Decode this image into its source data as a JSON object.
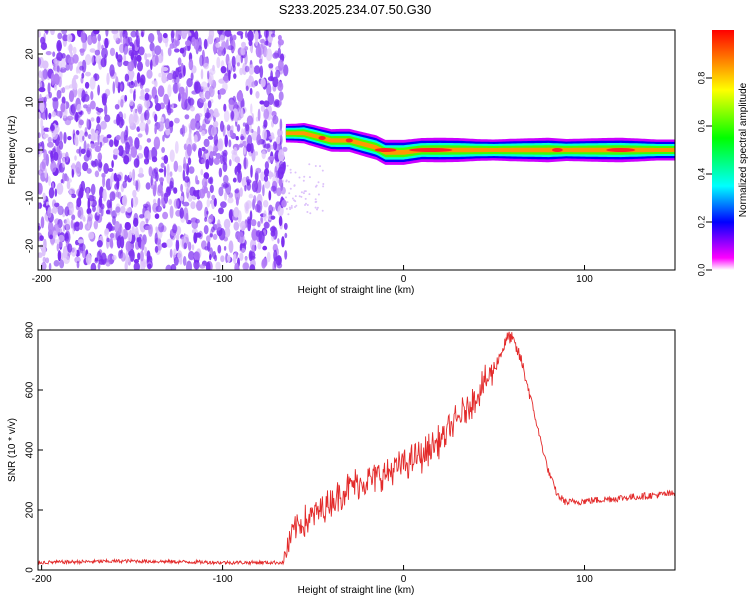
{
  "title": "S233.2025.234.07.50.G30",
  "colors": {
    "scatter_purple": "#7a2cf0",
    "trace_red": "#e32b2b",
    "colormap": [
      "#ffffff",
      "#ff00ff",
      "#0000ff",
      "#00ffff",
      "#00ff00",
      "#ffff00",
      "#ff0000"
    ]
  },
  "chart_data": [
    {
      "type": "heatmap",
      "xlabel": "Height of straight line (km)",
      "ylabel": "Frequency (Hz)",
      "xlim": [
        -202,
        150
      ],
      "ylim": [
        -25,
        25
      ],
      "xticks": [
        -200,
        -100,
        0,
        100
      ],
      "yticks": [
        -20,
        -10,
        0,
        10,
        20
      ],
      "colorbar": {
        "label": "Normalized spectral amplitude",
        "range": [
          0.0,
          1.0
        ],
        "ticks": [
          0.0,
          0.2,
          0.4,
          0.6,
          0.8
        ]
      },
      "noise_region_x": [
        -202,
        -65
      ],
      "signal_band": {
        "x": [
          -65,
          -60,
          -55,
          -50,
          -45,
          -40,
          -35,
          -30,
          -25,
          -20,
          -15,
          -10,
          -5,
          0,
          10,
          20,
          30,
          40,
          50,
          60,
          70,
          80,
          90,
          100,
          110,
          120,
          130,
          140,
          150
        ],
        "y": [
          3.5,
          3.5,
          3.5,
          3.0,
          2.5,
          2.0,
          2.0,
          2.0,
          1.5,
          1.0,
          0.5,
          -0.5,
          -0.5,
          -0.5,
          0.0,
          0.0,
          0.0,
          0.0,
          0.0,
          0.0,
          0.0,
          0.0,
          0.0,
          0.0,
          0.0,
          0.0,
          0.0,
          0.0,
          0.0
        ],
        "amp": [
          0.35,
          0.4,
          0.55,
          0.65,
          0.7,
          0.75,
          0.8,
          0.8,
          0.85,
          0.9,
          0.95,
          1.0,
          1.0,
          1.0,
          0.9,
          0.95,
          0.9,
          0.7,
          0.6,
          0.75,
          0.85,
          0.95,
          0.7,
          0.8,
          0.9,
          0.95,
          0.8,
          0.6,
          0.6
        ]
      }
    },
    {
      "type": "line",
      "xlabel": "Height of straight line (km)",
      "ylabel": "SNR (10 * v/v)",
      "xlim": [
        -202,
        150
      ],
      "ylim": [
        0,
        800
      ],
      "xticks": [
        -200,
        -100,
        0,
        100
      ],
      "yticks": [
        0,
        200,
        400,
        600,
        800
      ],
      "series": [
        {
          "x": [
            -202,
            -150,
            -100,
            -66,
            -64,
            -60,
            -55,
            -50,
            -40,
            -30,
            -20,
            -10,
            0,
            10,
            20,
            30,
            40,
            50,
            55,
            58,
            60,
            65,
            70,
            75,
            80,
            85,
            90,
            100,
            110,
            120,
            130,
            140,
            150
          ],
          "values": [
            25,
            30,
            25,
            25,
            80,
            140,
            160,
            180,
            230,
            280,
            300,
            320,
            350,
            380,
            430,
            500,
            580,
            670,
            740,
            780,
            770,
            700,
            580,
            450,
            330,
            250,
            225,
            230,
            235,
            240,
            245,
            250,
            255
          ]
        }
      ]
    }
  ]
}
